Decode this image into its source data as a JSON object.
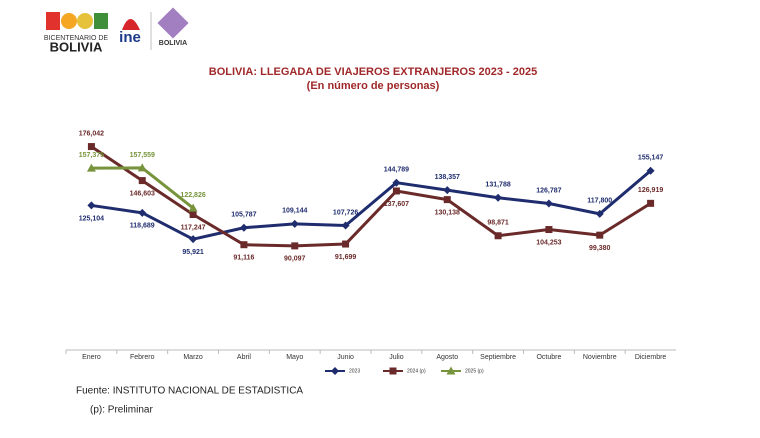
{
  "logos": {
    "bicentenario_top": "BICENTENARIO DE",
    "bicentenario_bottom": "BOLIVIA",
    "ine": "ine",
    "bolivia": "BOLIVIA"
  },
  "chart_data": {
    "type": "line",
    "title": "BOLIVIA: LLEGADA DE VIAJEROS EXTRANJEROS 2023 - 2025",
    "subtitle": "(En número de personas)",
    "categories": [
      "Enero",
      "Febrero",
      "Marzo",
      "Abril",
      "Mayo",
      "Junio",
      "Julio",
      "Agosto",
      "Septiembre",
      "Octubre",
      "Noviembre",
      "Diciembre"
    ],
    "ylim": [
      0,
      180000
    ],
    "legend": "bottom",
    "series": [
      {
        "name": "2023",
        "color": "#1f2d6e",
        "marker": "diamond",
        "values": [
          125104,
          118689,
          95921,
          105787,
          109144,
          107726,
          144789,
          138357,
          131788,
          126787,
          117800,
          155147
        ],
        "value_labels": [
          "125,104",
          "118,689",
          "95,921",
          "105,787",
          "109,144",
          "107,726",
          "144,789",
          "138,357",
          "131,788",
          "126,787",
          "117,800",
          "155,147"
        ]
      },
      {
        "name": "2024 (p)",
        "color": "#6b2a2a",
        "marker": "square",
        "values": [
          176042,
          146603,
          117247,
          91116,
          90097,
          91699,
          137607,
          130138,
          98871,
          104253,
          99380,
          126919
        ],
        "value_labels": [
          "176,042",
          "146,603",
          "117,247",
          "91,116",
          "90,097",
          "91,699",
          "137,607",
          "130,138",
          "98,871",
          "104,253",
          "99,380",
          "126,919"
        ]
      },
      {
        "name": "2025 (p)",
        "color": "#77933c",
        "marker": "triangle",
        "values": [
          157375,
          157559,
          122826,
          null,
          null,
          null,
          null,
          null,
          null,
          null,
          null,
          null
        ],
        "value_labels": [
          "157,375",
          "157,559",
          "122,826",
          null,
          null,
          null,
          null,
          null,
          null,
          null,
          null,
          null
        ]
      }
    ],
    "source": "Fuente: INSTITUTO NACIONAL DE ESTADISTICA",
    "note": "(p): Preliminar"
  }
}
